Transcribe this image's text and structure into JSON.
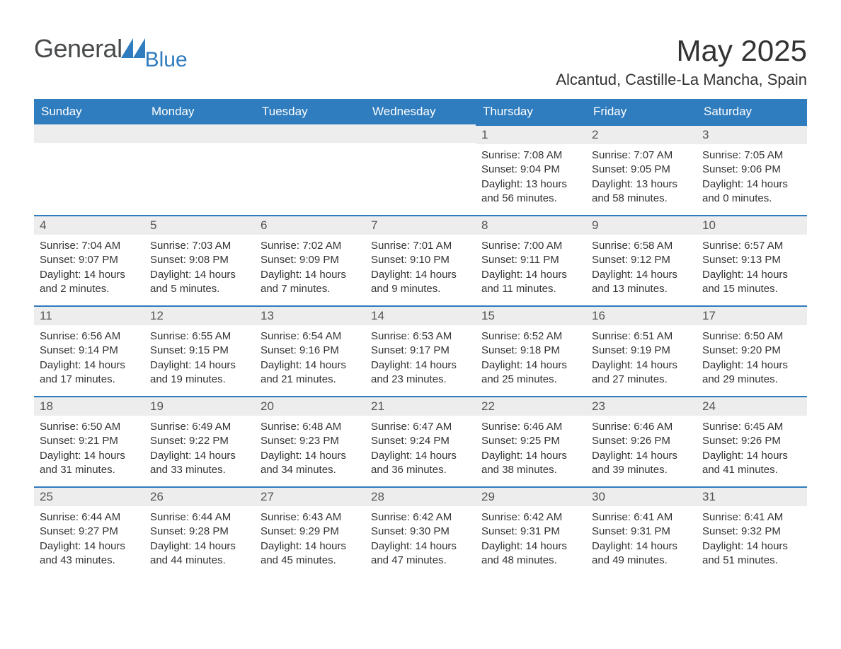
{
  "brand": {
    "text1": "General",
    "text2": "Blue",
    "tri_color": "#2f7cbe"
  },
  "title": "May 2025",
  "location": "Alcantud, Castille-La Mancha, Spain",
  "colors": {
    "header_bg": "#2f7cbe",
    "header_text": "#ffffff",
    "daybar_bg": "#ededed",
    "daybar_border": "#2f7cbe",
    "body_text": "#333333"
  },
  "weekdays": [
    "Sunday",
    "Monday",
    "Tuesday",
    "Wednesday",
    "Thursday",
    "Friday",
    "Saturday"
  ],
  "weeks": [
    [
      null,
      null,
      null,
      null,
      {
        "n": "1",
        "sr": "Sunrise: 7:08 AM",
        "ss": "Sunset: 9:04 PM",
        "d1": "Daylight: 13 hours",
        "d2": "and 56 minutes."
      },
      {
        "n": "2",
        "sr": "Sunrise: 7:07 AM",
        "ss": "Sunset: 9:05 PM",
        "d1": "Daylight: 13 hours",
        "d2": "and 58 minutes."
      },
      {
        "n": "3",
        "sr": "Sunrise: 7:05 AM",
        "ss": "Sunset: 9:06 PM",
        "d1": "Daylight: 14 hours",
        "d2": "and 0 minutes."
      }
    ],
    [
      {
        "n": "4",
        "sr": "Sunrise: 7:04 AM",
        "ss": "Sunset: 9:07 PM",
        "d1": "Daylight: 14 hours",
        "d2": "and 2 minutes."
      },
      {
        "n": "5",
        "sr": "Sunrise: 7:03 AM",
        "ss": "Sunset: 9:08 PM",
        "d1": "Daylight: 14 hours",
        "d2": "and 5 minutes."
      },
      {
        "n": "6",
        "sr": "Sunrise: 7:02 AM",
        "ss": "Sunset: 9:09 PM",
        "d1": "Daylight: 14 hours",
        "d2": "and 7 minutes."
      },
      {
        "n": "7",
        "sr": "Sunrise: 7:01 AM",
        "ss": "Sunset: 9:10 PM",
        "d1": "Daylight: 14 hours",
        "d2": "and 9 minutes."
      },
      {
        "n": "8",
        "sr": "Sunrise: 7:00 AM",
        "ss": "Sunset: 9:11 PM",
        "d1": "Daylight: 14 hours",
        "d2": "and 11 minutes."
      },
      {
        "n": "9",
        "sr": "Sunrise: 6:58 AM",
        "ss": "Sunset: 9:12 PM",
        "d1": "Daylight: 14 hours",
        "d2": "and 13 minutes."
      },
      {
        "n": "10",
        "sr": "Sunrise: 6:57 AM",
        "ss": "Sunset: 9:13 PM",
        "d1": "Daylight: 14 hours",
        "d2": "and 15 minutes."
      }
    ],
    [
      {
        "n": "11",
        "sr": "Sunrise: 6:56 AM",
        "ss": "Sunset: 9:14 PM",
        "d1": "Daylight: 14 hours",
        "d2": "and 17 minutes."
      },
      {
        "n": "12",
        "sr": "Sunrise: 6:55 AM",
        "ss": "Sunset: 9:15 PM",
        "d1": "Daylight: 14 hours",
        "d2": "and 19 minutes."
      },
      {
        "n": "13",
        "sr": "Sunrise: 6:54 AM",
        "ss": "Sunset: 9:16 PM",
        "d1": "Daylight: 14 hours",
        "d2": "and 21 minutes."
      },
      {
        "n": "14",
        "sr": "Sunrise: 6:53 AM",
        "ss": "Sunset: 9:17 PM",
        "d1": "Daylight: 14 hours",
        "d2": "and 23 minutes."
      },
      {
        "n": "15",
        "sr": "Sunrise: 6:52 AM",
        "ss": "Sunset: 9:18 PM",
        "d1": "Daylight: 14 hours",
        "d2": "and 25 minutes."
      },
      {
        "n": "16",
        "sr": "Sunrise: 6:51 AM",
        "ss": "Sunset: 9:19 PM",
        "d1": "Daylight: 14 hours",
        "d2": "and 27 minutes."
      },
      {
        "n": "17",
        "sr": "Sunrise: 6:50 AM",
        "ss": "Sunset: 9:20 PM",
        "d1": "Daylight: 14 hours",
        "d2": "and 29 minutes."
      }
    ],
    [
      {
        "n": "18",
        "sr": "Sunrise: 6:50 AM",
        "ss": "Sunset: 9:21 PM",
        "d1": "Daylight: 14 hours",
        "d2": "and 31 minutes."
      },
      {
        "n": "19",
        "sr": "Sunrise: 6:49 AM",
        "ss": "Sunset: 9:22 PM",
        "d1": "Daylight: 14 hours",
        "d2": "and 33 minutes."
      },
      {
        "n": "20",
        "sr": "Sunrise: 6:48 AM",
        "ss": "Sunset: 9:23 PM",
        "d1": "Daylight: 14 hours",
        "d2": "and 34 minutes."
      },
      {
        "n": "21",
        "sr": "Sunrise: 6:47 AM",
        "ss": "Sunset: 9:24 PM",
        "d1": "Daylight: 14 hours",
        "d2": "and 36 minutes."
      },
      {
        "n": "22",
        "sr": "Sunrise: 6:46 AM",
        "ss": "Sunset: 9:25 PM",
        "d1": "Daylight: 14 hours",
        "d2": "and 38 minutes."
      },
      {
        "n": "23",
        "sr": "Sunrise: 6:46 AM",
        "ss": "Sunset: 9:26 PM",
        "d1": "Daylight: 14 hours",
        "d2": "and 39 minutes."
      },
      {
        "n": "24",
        "sr": "Sunrise: 6:45 AM",
        "ss": "Sunset: 9:26 PM",
        "d1": "Daylight: 14 hours",
        "d2": "and 41 minutes."
      }
    ],
    [
      {
        "n": "25",
        "sr": "Sunrise: 6:44 AM",
        "ss": "Sunset: 9:27 PM",
        "d1": "Daylight: 14 hours",
        "d2": "and 43 minutes."
      },
      {
        "n": "26",
        "sr": "Sunrise: 6:44 AM",
        "ss": "Sunset: 9:28 PM",
        "d1": "Daylight: 14 hours",
        "d2": "and 44 minutes."
      },
      {
        "n": "27",
        "sr": "Sunrise: 6:43 AM",
        "ss": "Sunset: 9:29 PM",
        "d1": "Daylight: 14 hours",
        "d2": "and 45 minutes."
      },
      {
        "n": "28",
        "sr": "Sunrise: 6:42 AM",
        "ss": "Sunset: 9:30 PM",
        "d1": "Daylight: 14 hours",
        "d2": "and 47 minutes."
      },
      {
        "n": "29",
        "sr": "Sunrise: 6:42 AM",
        "ss": "Sunset: 9:31 PM",
        "d1": "Daylight: 14 hours",
        "d2": "and 48 minutes."
      },
      {
        "n": "30",
        "sr": "Sunrise: 6:41 AM",
        "ss": "Sunset: 9:31 PM",
        "d1": "Daylight: 14 hours",
        "d2": "and 49 minutes."
      },
      {
        "n": "31",
        "sr": "Sunrise: 6:41 AM",
        "ss": "Sunset: 9:32 PM",
        "d1": "Daylight: 14 hours",
        "d2": "and 51 minutes."
      }
    ]
  ]
}
